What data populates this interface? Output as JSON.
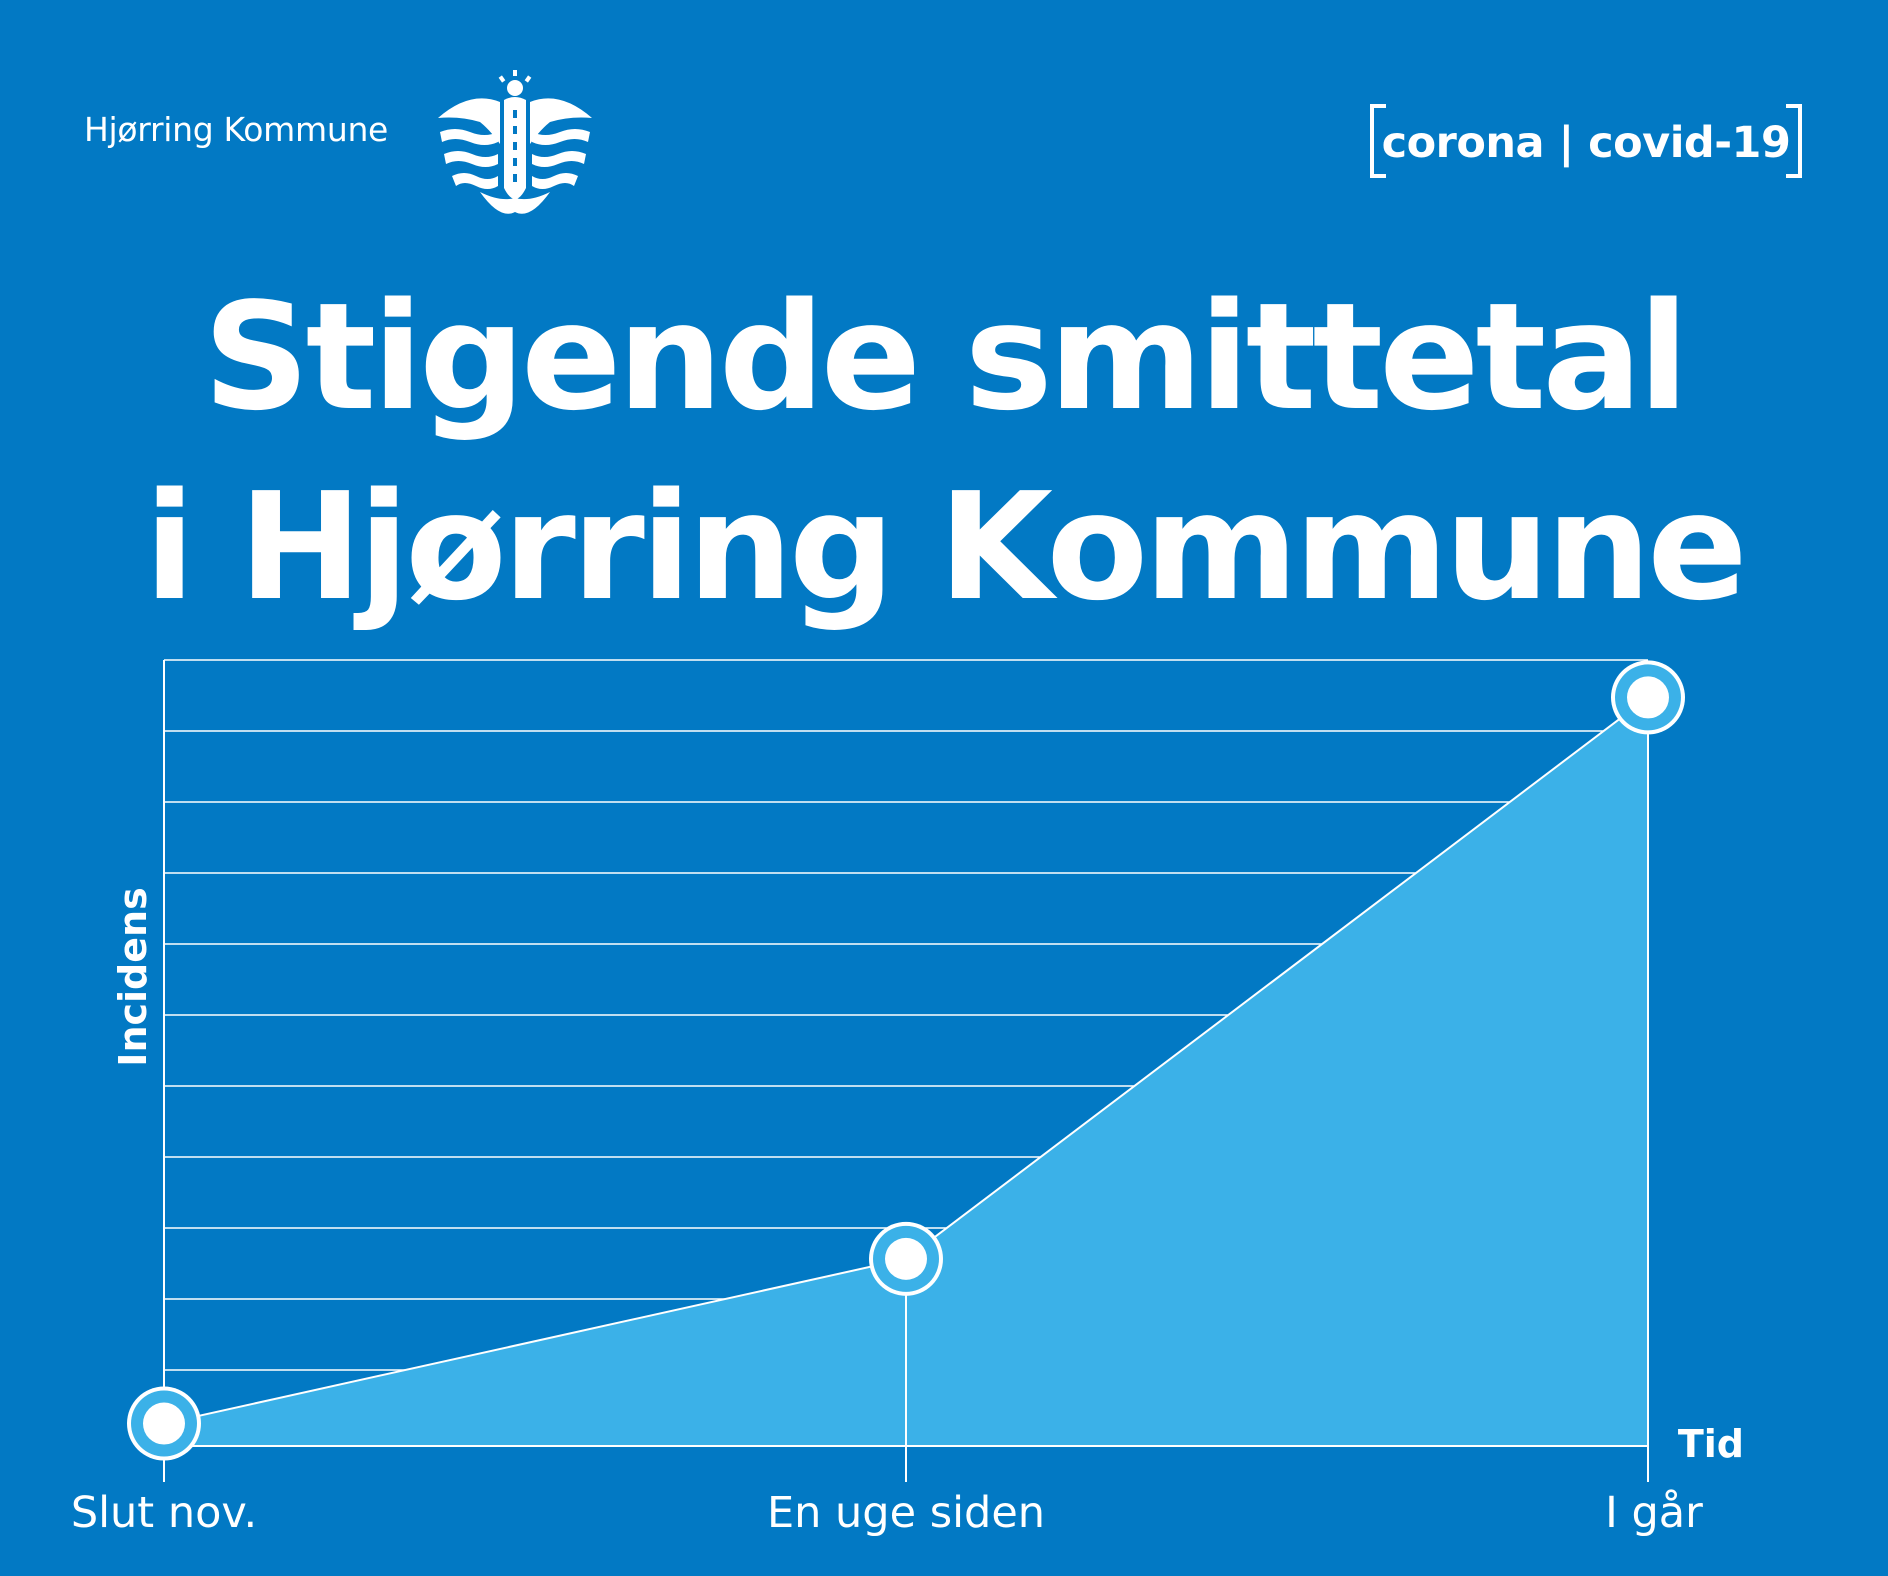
{
  "header": {
    "brand_name": "Hjørring Kommune",
    "tag": "corona | covid-19",
    "logo_icon": "hjorring-crest-icon"
  },
  "headline": {
    "line1": "Stigende smittetal",
    "line2": "i Hjørring Kommune"
  },
  "colors": {
    "background": "#0279c4",
    "area_fill": "#3bb1e8",
    "line": "#ffffff"
  },
  "chart_data": {
    "type": "area",
    "title": "",
    "xlabel": "Tid",
    "ylabel": "Incidens",
    "categories": [
      "Slut nov.",
      "En uge siden",
      "I går"
    ],
    "values": [
      0.03,
      0.25,
      1.0
    ],
    "ylim": [
      0,
      1.05
    ],
    "grid": true,
    "y_tick_labels": false
  }
}
